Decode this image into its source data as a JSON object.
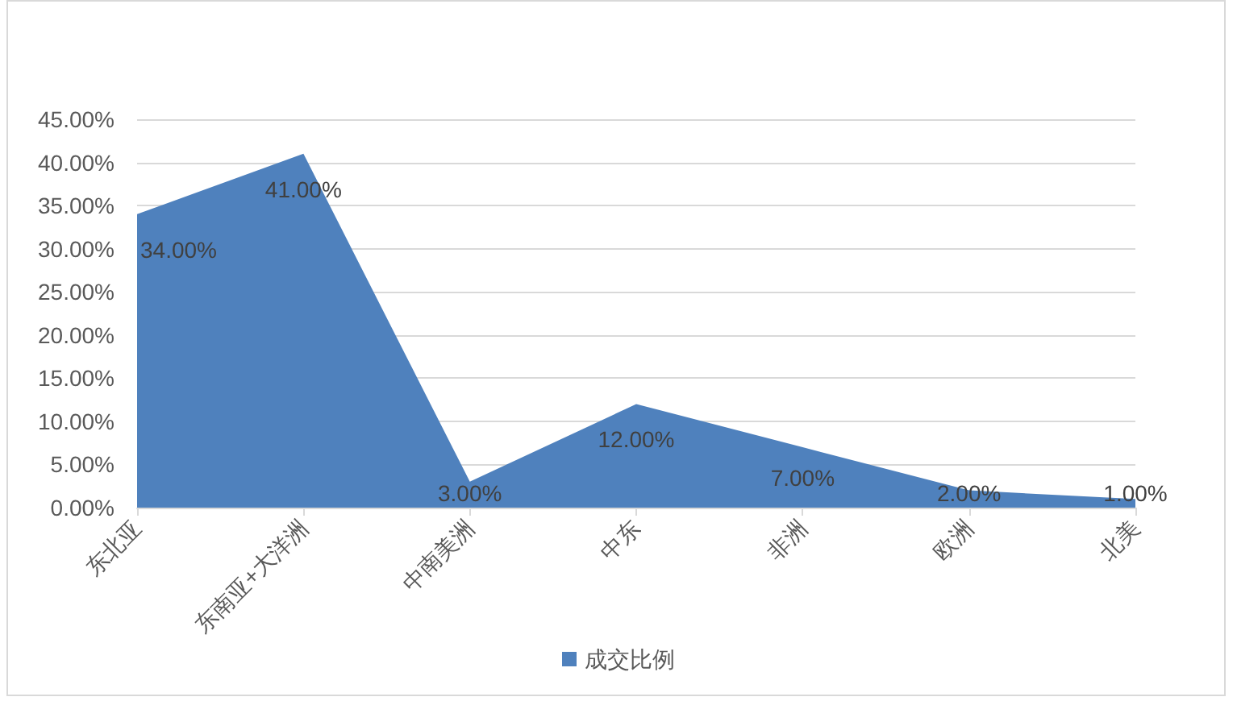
{
  "chart_data": {
    "type": "area",
    "categories": [
      "东北亚",
      "东南亚+大洋洲",
      "中南美洲",
      "中东",
      "非洲",
      "欧洲",
      "北美"
    ],
    "series": [
      {
        "name": "成交比例",
        "color": "#4f81bd",
        "values": [
          34,
          41,
          3,
          12,
          7,
          2,
          1
        ],
        "value_labels": [
          "34.00%",
          "41.00%",
          "3.00%",
          "12.00%",
          "7.00%",
          "2.00%",
          "1.00%"
        ]
      }
    ],
    "ylim": [
      0,
      45
    ],
    "yticks": [
      {
        "value": 0,
        "label": "0.00%"
      },
      {
        "value": 5,
        "label": "5.00%"
      },
      {
        "value": 10,
        "label": "10.00%"
      },
      {
        "value": 15,
        "label": "15.00%"
      },
      {
        "value": 20,
        "label": "20.00%"
      },
      {
        "value": 25,
        "label": "25.00%"
      },
      {
        "value": 30,
        "label": "30.00%"
      },
      {
        "value": 35,
        "label": "35.00%"
      },
      {
        "value": 40,
        "label": "40.00%"
      },
      {
        "value": 45,
        "label": "45.00%"
      }
    ],
    "grid": "y",
    "legend": "bottom"
  }
}
